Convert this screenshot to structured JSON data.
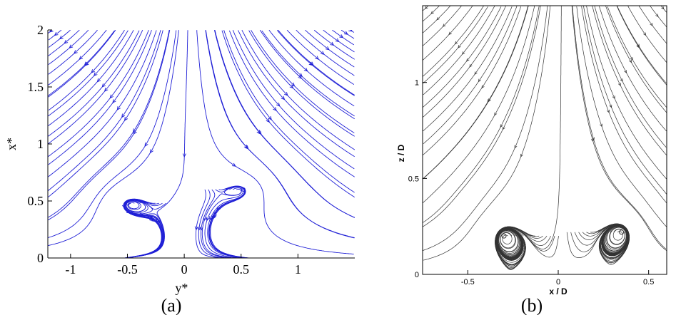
{
  "chart_data": [
    {
      "type": "streamline",
      "panel_label": "(a)",
      "xlabel": "y*",
      "ylabel": "x*",
      "xlim": [
        -1.2,
        1.5
      ],
      "ylim": [
        0,
        2
      ],
      "x_ticks": [
        "-1",
        "-0.5",
        "0",
        "0.5",
        "1"
      ],
      "y_ticks": [
        "0",
        "0.5",
        "1",
        "1.5",
        "2"
      ],
      "line_color": "#1f1fd6",
      "vortex_centers": [
        {
          "x": -0.5,
          "y": 0.48
        },
        {
          "x": 0.52,
          "y": 0.6
        }
      ],
      "saddle_point": {
        "x": 0.05,
        "y": 1.0
      },
      "grid": false
    },
    {
      "type": "streamline",
      "panel_label": "(b)",
      "xlabel": "x / D",
      "ylabel": "z / D",
      "xlim": [
        -0.75,
        0.6
      ],
      "ylim": [
        0,
        1.4
      ],
      "x_ticks": [
        "-0.5",
        "0",
        "0.5"
      ],
      "y_ticks": [
        "0",
        "0.5",
        "1"
      ],
      "line_color": "#333333",
      "vortex_centers": [
        {
          "x": -0.3,
          "y": 0.2
        },
        {
          "x": 0.35,
          "y": 0.22
        }
      ],
      "saddle_point": {
        "x": 0.02,
        "y": 0.55
      },
      "grid": false
    }
  ]
}
